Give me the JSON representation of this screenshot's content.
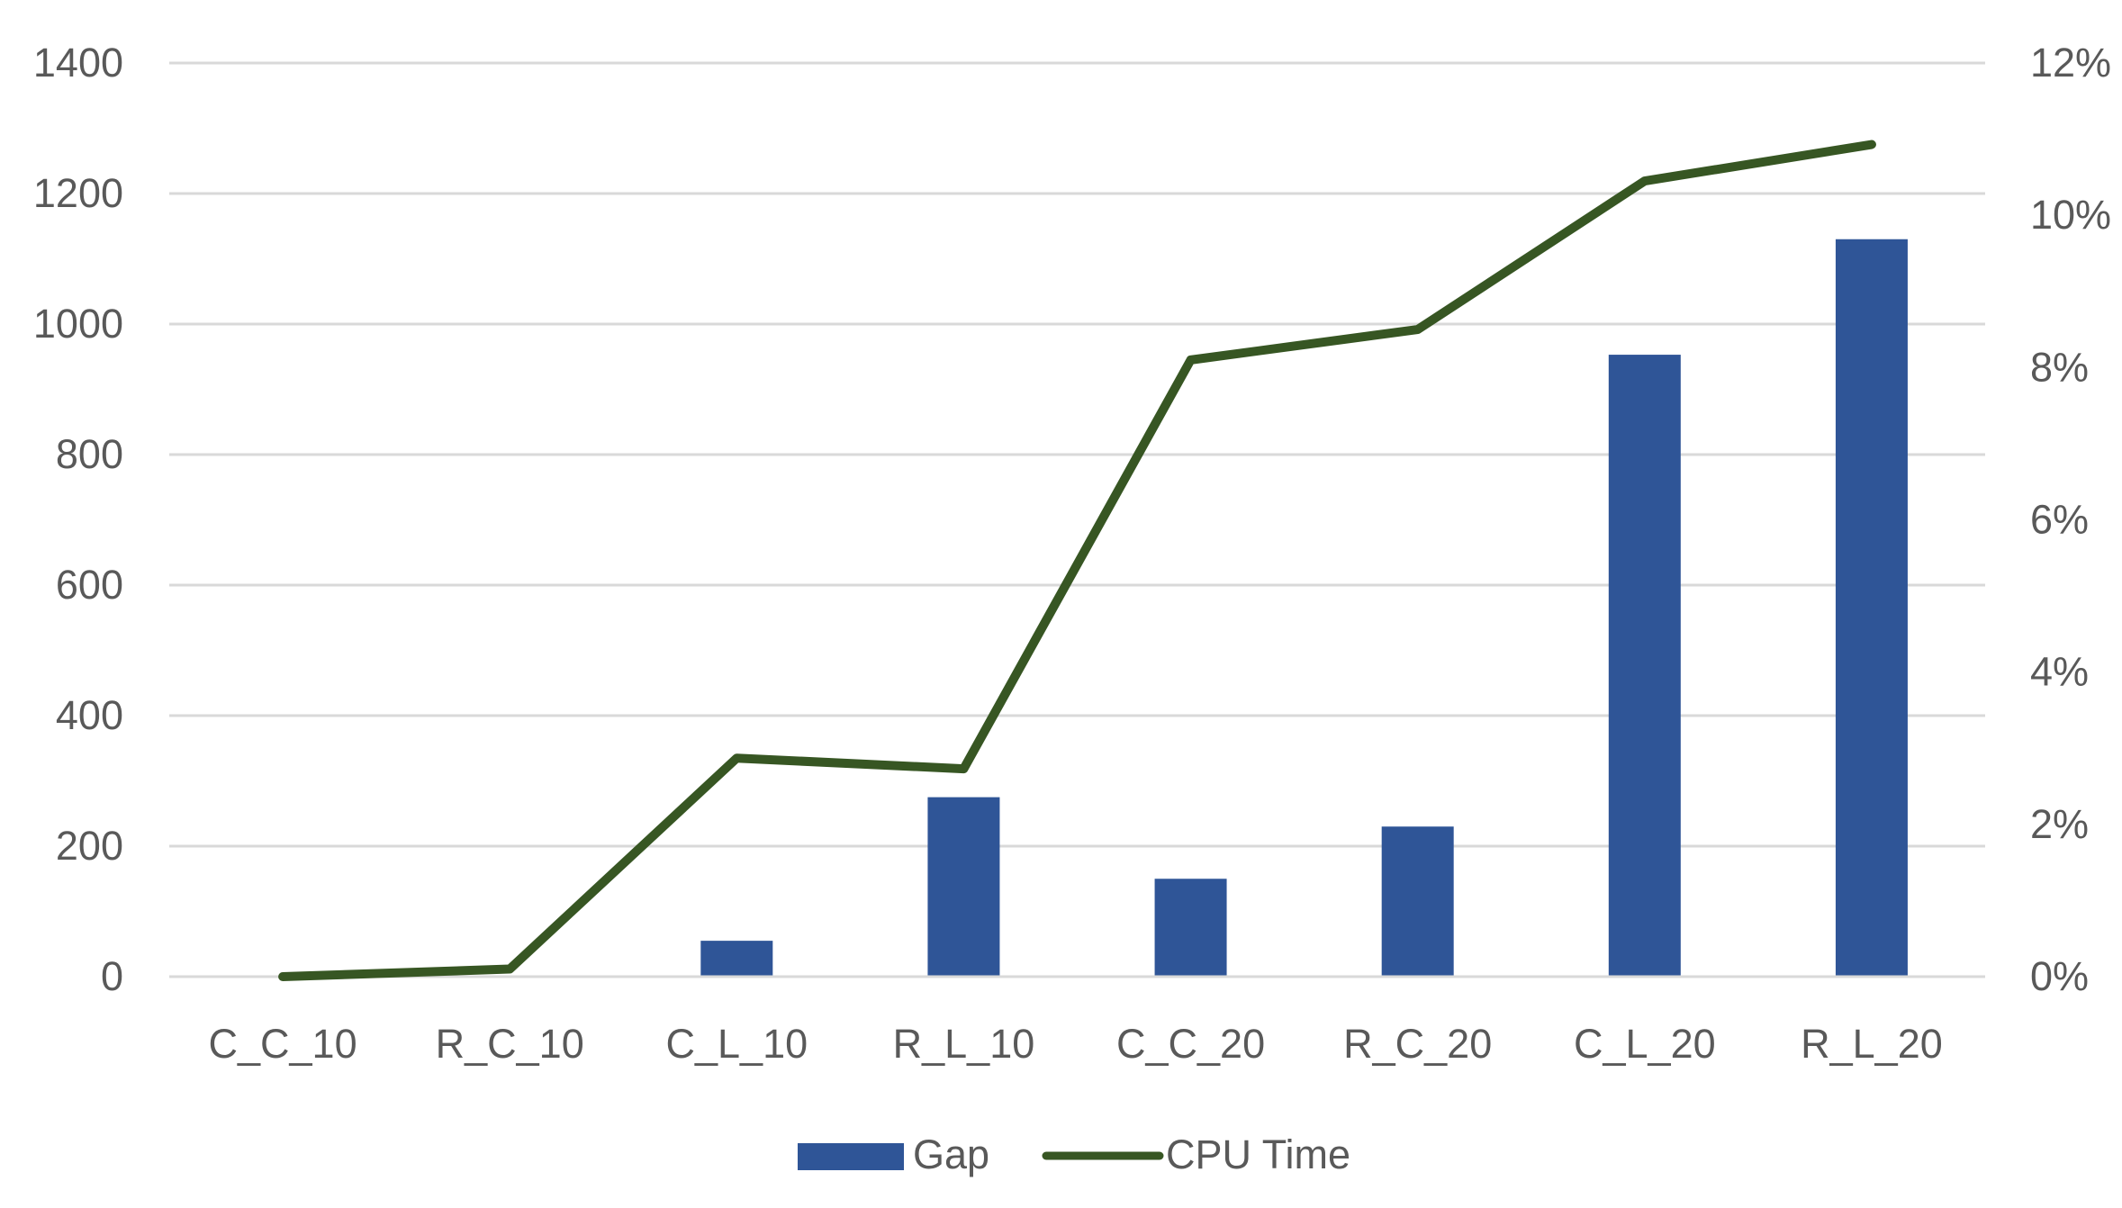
{
  "chart_data": {
    "type": "bar",
    "title": "",
    "xlabel": "",
    "ylabel": "",
    "categories": [
      "C_C_10",
      "R_C_10",
      "C_L_10",
      "R_L_10",
      "C_C_20",
      "R_C_20",
      "C_L_20",
      "R_L_20"
    ],
    "series": [
      {
        "name": "Gap",
        "type": "bar",
        "axis": "left",
        "color": "#2F5597",
        "values": [
          0,
          0,
          55,
          275,
          150,
          230,
          953,
          1130
        ]
      },
      {
        "name": "CPU Time",
        "type": "line",
        "axis": "right",
        "color": "#375623",
        "values": [
          0.0,
          0.001,
          0.0287,
          0.0273,
          0.081,
          0.085,
          0.1045,
          0.1093
        ]
      }
    ],
    "ylim": [
      0,
      1400
    ],
    "y_ticks": [
      "0",
      "200",
      "400",
      "600",
      "800",
      "1000",
      "1200",
      "1400"
    ],
    "y2lim": [
      0,
      0.12
    ],
    "y2_ticks": [
      "0%",
      "2%",
      "4%",
      "6%",
      "8%",
      "10%",
      "12%"
    ],
    "grid": true,
    "legend_position": "bottom"
  },
  "legend": {
    "gap_label": "Gap",
    "cpu_label": "CPU Time"
  }
}
